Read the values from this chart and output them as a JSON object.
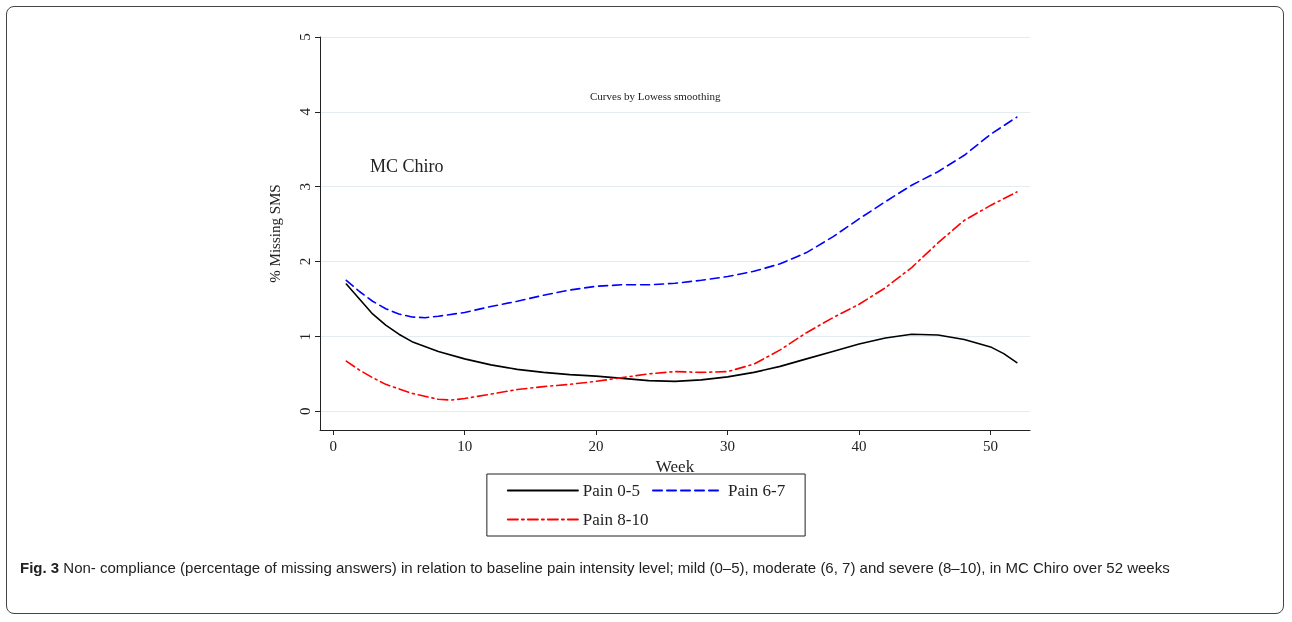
{
  "chart_data": {
    "type": "line",
    "xlabel": "Week",
    "ylabel": "% Missing SMS",
    "annotations": [
      "Curves by Lowess smoothing",
      "MC Chiro",
      "Fig. 3 Non- compliance (percentage of missing answers) in relation to baseline pain intensity level; mild (0–5), moderate (6, 7) and severe (8–10), in MC Chiro over 52 weeks"
    ],
    "xlim": [
      -1,
      53
    ],
    "xticks": [
      0,
      10,
      20,
      30,
      40,
      50
    ],
    "ylim": [
      -0.25,
      5
    ],
    "yticks": [
      0,
      1,
      2,
      3,
      4,
      5
    ],
    "grid": "y",
    "legend": "bottom",
    "marker": "none",
    "series": [
      {
        "name": "Pain 0-5",
        "color": "#000000",
        "line_style": "solid",
        "x": [
          1,
          2,
          3,
          4,
          5,
          6,
          8,
          10,
          12,
          14,
          16,
          18,
          20,
          22,
          24,
          26,
          28,
          30,
          32,
          34,
          36,
          38,
          40,
          42,
          44,
          46,
          48,
          50,
          51,
          52
        ],
        "values": [
          1.7,
          1.5,
          1.3,
          1.15,
          1.03,
          0.93,
          0.8,
          0.7,
          0.62,
          0.56,
          0.52,
          0.49,
          0.47,
          0.44,
          0.41,
          0.4,
          0.42,
          0.46,
          0.52,
          0.6,
          0.7,
          0.8,
          0.9,
          0.98,
          1.03,
          1.02,
          0.96,
          0.86,
          0.77,
          0.65
        ]
      },
      {
        "name": "Pain 6-7",
        "color": "#0000ff",
        "line_style": "dashed",
        "x": [
          1,
          2,
          3,
          4,
          5,
          6,
          7,
          8,
          10,
          12,
          14,
          16,
          18,
          20,
          22,
          24,
          26,
          28,
          30,
          32,
          34,
          36,
          38,
          40,
          42,
          44,
          46,
          48,
          50,
          52
        ],
        "values": [
          1.75,
          1.6,
          1.47,
          1.37,
          1.3,
          1.26,
          1.25,
          1.27,
          1.32,
          1.4,
          1.47,
          1.55,
          1.62,
          1.67,
          1.69,
          1.69,
          1.71,
          1.75,
          1.8,
          1.87,
          1.97,
          2.12,
          2.33,
          2.57,
          2.8,
          3.02,
          3.2,
          3.42,
          3.7,
          3.93
        ]
      },
      {
        "name": "Pain 8-10",
        "color": "#ff0000",
        "line_style": "dashdot",
        "x": [
          1,
          2,
          3,
          4,
          5,
          6,
          8,
          9,
          10,
          12,
          14,
          16,
          18,
          20,
          22,
          24,
          26,
          28,
          30,
          32,
          34,
          36,
          38,
          40,
          42,
          44,
          46,
          48,
          50,
          52
        ],
        "values": [
          0.67,
          0.55,
          0.45,
          0.36,
          0.3,
          0.24,
          0.16,
          0.15,
          0.17,
          0.23,
          0.29,
          0.33,
          0.36,
          0.4,
          0.45,
          0.5,
          0.53,
          0.52,
          0.53,
          0.63,
          0.82,
          1.05,
          1.25,
          1.43,
          1.65,
          1.92,
          2.25,
          2.55,
          2.75,
          2.93
        ]
      }
    ]
  }
}
